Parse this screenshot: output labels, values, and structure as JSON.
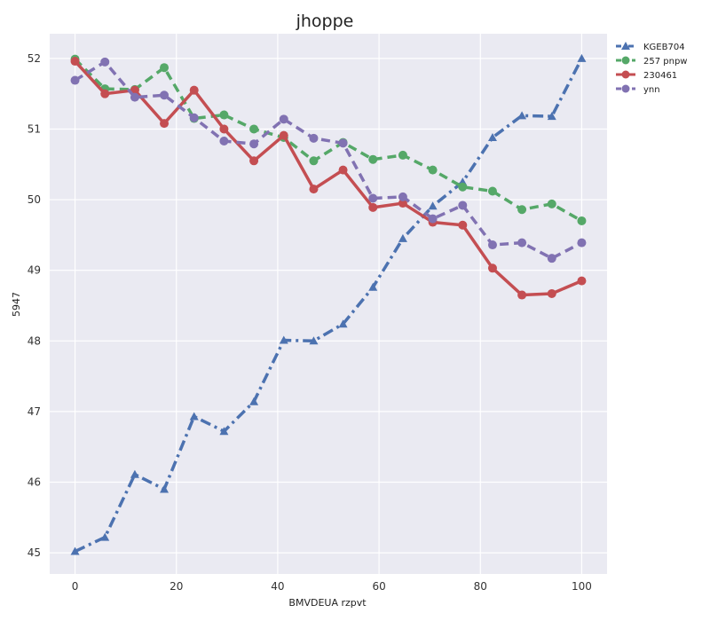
{
  "chart_data": {
    "type": "line",
    "title": "jhoppe",
    "xlabel": "BMVDEUA rzpvt",
    "ylabel": "5947",
    "x": [
      0,
      5.9,
      11.8,
      17.6,
      23.5,
      29.4,
      35.3,
      41.2,
      47.1,
      52.9,
      58.8,
      64.7,
      70.6,
      76.5,
      82.4,
      88.2,
      94.1,
      100
    ],
    "xlim": [
      -5,
      105
    ],
    "ylim": [
      44.7,
      52.35
    ],
    "xticks": [
      "0",
      "20",
      "40",
      "60",
      "80",
      "100"
    ],
    "yticks": [
      "45",
      "46",
      "47",
      "48",
      "49",
      "50",
      "51",
      "52"
    ],
    "grid": true,
    "legend_position": "outside top-right",
    "series": [
      {
        "name": "KGEB704",
        "color": "#4C72B0",
        "style": "dashdot",
        "marker": "triangle",
        "values": [
          45.02,
          45.22,
          46.11,
          45.9,
          46.93,
          46.72,
          47.14,
          48.01,
          48.0,
          48.24,
          48.76,
          49.45,
          49.91,
          50.25,
          50.88,
          51.19,
          51.18,
          52.0
        ]
      },
      {
        "name": "257 pnpw",
        "color": "#55A868",
        "style": "dashed",
        "marker": "circle",
        "values": [
          51.99,
          51.57,
          51.56,
          51.87,
          51.15,
          51.2,
          51.0,
          50.88,
          50.55,
          50.81,
          50.57,
          50.63,
          50.42,
          50.18,
          50.12,
          49.86,
          49.94,
          49.7
        ]
      },
      {
        "name": "230461",
        "color": "#C44E52",
        "style": "solid",
        "marker": "circle",
        "values": [
          51.96,
          51.5,
          51.55,
          51.08,
          51.55,
          51.0,
          50.55,
          50.91,
          50.15,
          50.42,
          49.89,
          49.95,
          49.68,
          49.64,
          49.03,
          48.65,
          48.67,
          48.85
        ]
      },
      {
        "name": "ynn",
        "color": "#8172B2",
        "style": "dashed",
        "marker": "circle",
        "values": [
          51.69,
          51.95,
          51.45,
          51.48,
          51.16,
          50.83,
          50.79,
          51.14,
          50.87,
          50.8,
          50.02,
          50.04,
          49.73,
          49.92,
          49.36,
          49.39,
          49.17,
          49.39
        ]
      }
    ]
  }
}
